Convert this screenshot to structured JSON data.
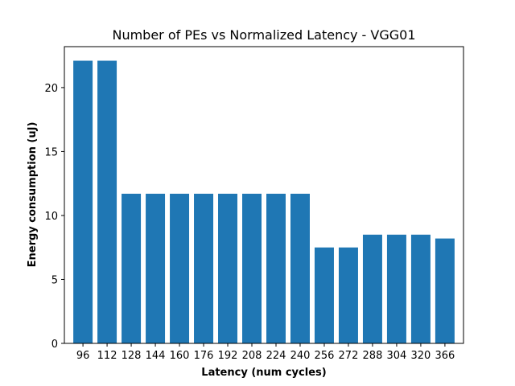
{
  "chart_data": {
    "type": "bar",
    "title": "Number of PEs vs Normalized Latency - VGG01",
    "xlabel": "Latency (num cycles)",
    "ylabel": "Energy consumption (uJ)",
    "categories": [
      "96",
      "112",
      "128",
      "144",
      "160",
      "176",
      "192",
      "208",
      "224",
      "240",
      "256",
      "272",
      "288",
      "304",
      "320",
      "366"
    ],
    "values": [
      22.1,
      22.1,
      11.7,
      11.7,
      11.7,
      11.7,
      11.7,
      11.7,
      11.7,
      11.7,
      7.5,
      7.5,
      8.5,
      8.5,
      8.5,
      8.2
    ],
    "ylim": [
      0,
      23.2
    ],
    "yticks": [
      0,
      5,
      10,
      15,
      20
    ],
    "bar_color": "#1f77b4",
    "grid": false
  }
}
